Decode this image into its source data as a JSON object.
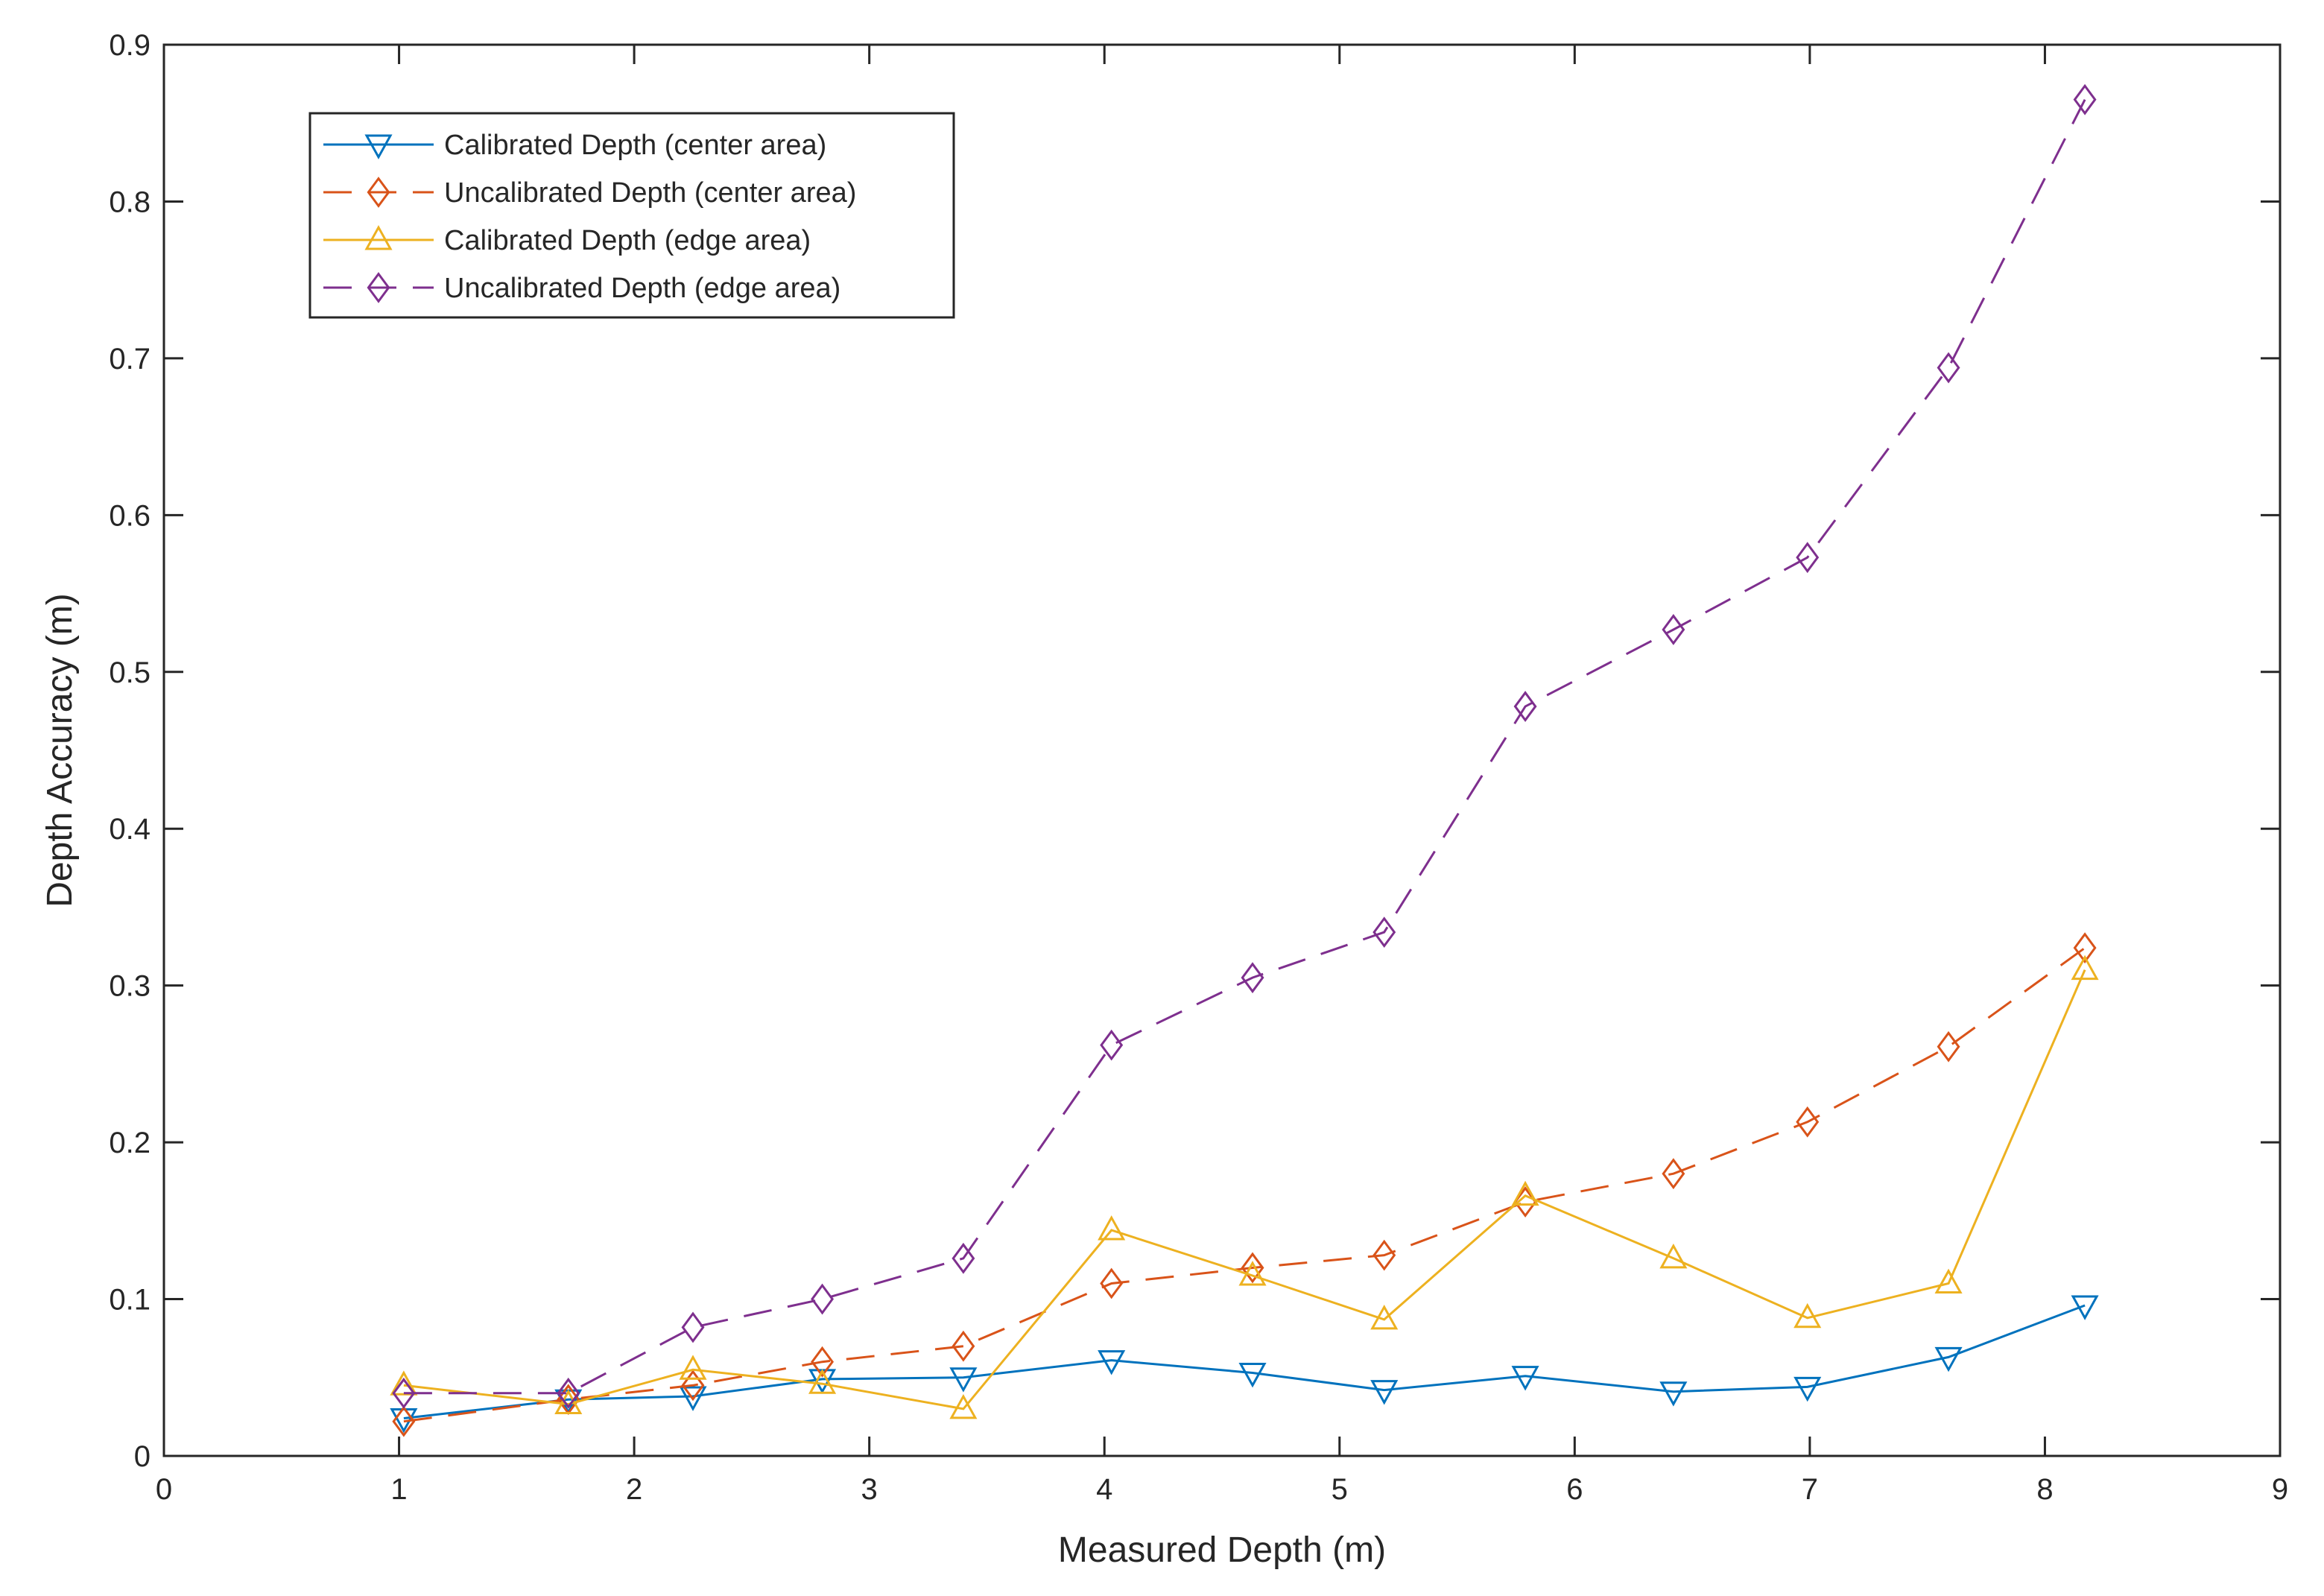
{
  "chart_data": {
    "type": "line",
    "title": "",
    "xlabel": "Measured Depth (m)",
    "ylabel": "Depth Accuracy (m)",
    "xlim": [
      0,
      9
    ],
    "ylim": [
      0,
      0.9
    ],
    "xticks": [
      0,
      1,
      2,
      3,
      4,
      5,
      6,
      7,
      8,
      9
    ],
    "yticks": [
      0,
      0.1,
      0.2,
      0.3,
      0.4,
      0.5,
      0.6,
      0.7,
      0.8,
      0.9
    ],
    "xtick_labels": [
      "0",
      "1",
      "2",
      "3",
      "4",
      "5",
      "6",
      "7",
      "8",
      "9"
    ],
    "ytick_labels": [
      "0",
      "0.1",
      "0.2",
      "0.3",
      "0.4",
      "0.5",
      "0.6",
      "0.7",
      "0.8",
      "0.9"
    ],
    "grid": false,
    "legend_position": "top-left",
    "x": [
      1.02,
      1.72,
      2.25,
      2.8,
      3.4,
      4.03,
      4.63,
      5.19,
      5.79,
      6.42,
      6.99,
      7.59,
      8.17
    ],
    "series": [
      {
        "name": "Calibrated Depth (center area)",
        "color": "#0072BD",
        "dash": "solid",
        "marker": "triangle-down",
        "values": [
          0.024,
          0.036,
          0.038,
          0.049,
          0.05,
          0.061,
          0.053,
          0.042,
          0.051,
          0.041,
          0.044,
          0.063,
          0.096
        ]
      },
      {
        "name": "Uncalibrated Depth (center area)",
        "color": "#D95319",
        "dash": "dashed",
        "marker": "diamond",
        "values": [
          0.022,
          0.036,
          0.045,
          0.06,
          0.07,
          0.11,
          0.12,
          0.128,
          0.162,
          0.18,
          0.213,
          0.261,
          0.324
        ]
      },
      {
        "name": "Calibrated Depth (edge area)",
        "color": "#EDB120",
        "dash": "solid",
        "marker": "triangle-up",
        "values": [
          0.045,
          0.033,
          0.055,
          0.046,
          0.03,
          0.144,
          0.115,
          0.087,
          0.166,
          0.126,
          0.088,
          0.11,
          0.31
        ]
      },
      {
        "name": "Uncalibrated Depth (edge area)",
        "color": "#7E2F8E",
        "dash": "dashed",
        "marker": "diamond",
        "values": [
          0.04,
          0.04,
          0.082,
          0.1,
          0.126,
          0.262,
          0.305,
          0.334,
          0.478,
          0.527,
          0.573,
          0.694,
          0.865
        ]
      }
    ]
  }
}
